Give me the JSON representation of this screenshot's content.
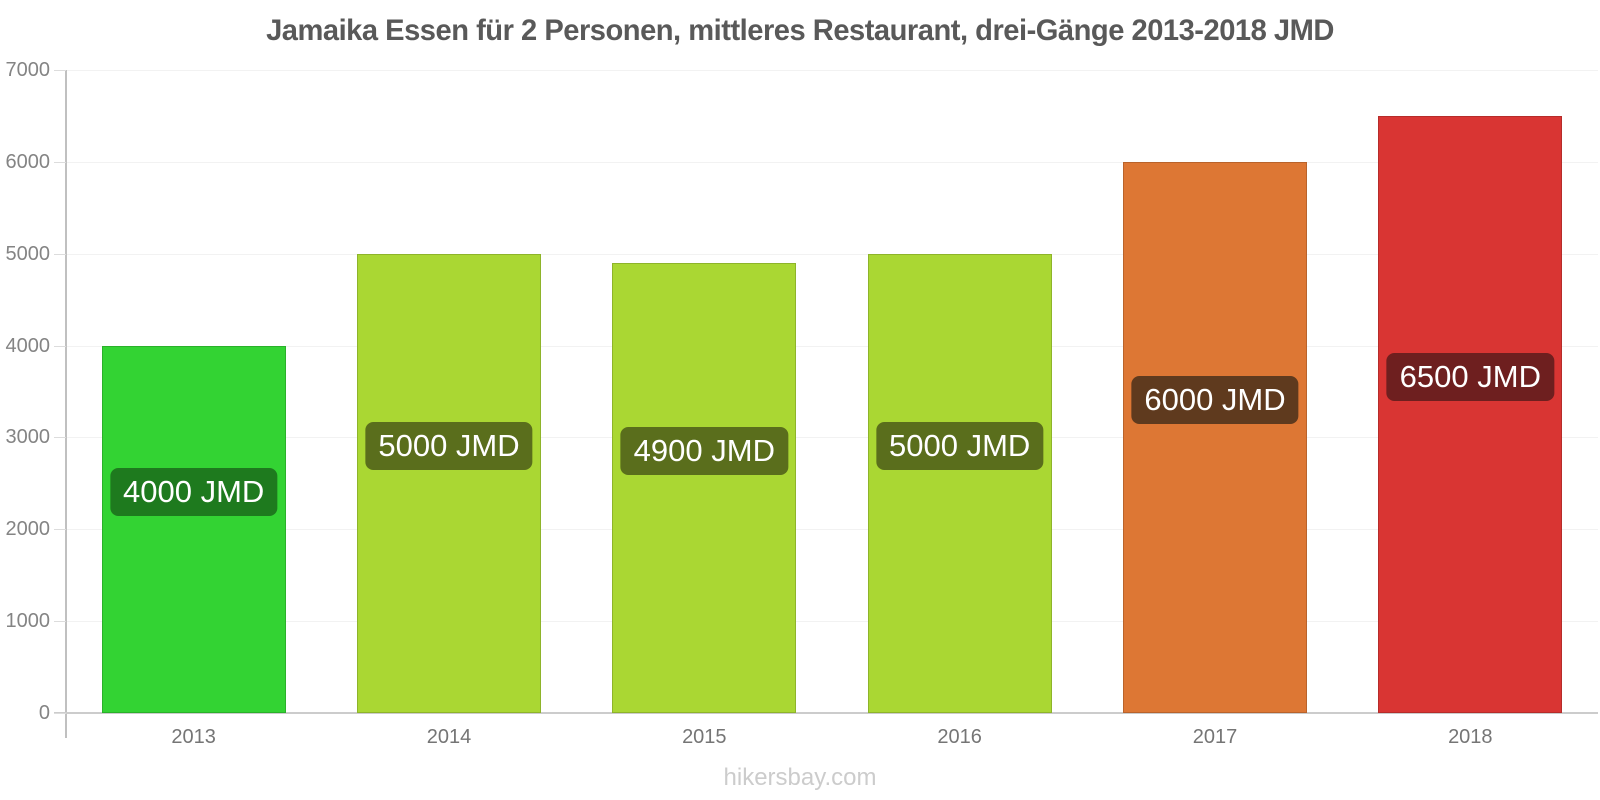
{
  "title": "Jamaika Essen für 2 Personen, mittleres Restaurant, drei-Gänge 2013-2018 JMD",
  "footer": "hikersbay.com",
  "chart_data": {
    "type": "bar",
    "title": "Jamaika Essen für 2 Personen, mittleres Restaurant, drei-Gänge 2013-2018 JMD",
    "unit": "JMD",
    "categories": [
      "2013",
      "2014",
      "2015",
      "2016",
      "2017",
      "2018"
    ],
    "values": [
      4000,
      5000,
      4900,
      5000,
      6000,
      6500
    ],
    "bar_labels": [
      "4000 JMD",
      "5000 JMD",
      "4900 JMD",
      "5000 JMD",
      "6000 JMD",
      "6500 JMD"
    ],
    "bar_colors": [
      "#33d333",
      "#aad733",
      "#aad733",
      "#aad733",
      "#dd7734",
      "#d93533"
    ],
    "bar_label_bg": [
      "#1e7a1e",
      "#5a6e1c",
      "#5a6e1c",
      "#5a6e1c",
      "#5f3a1e",
      "#6e1f1f"
    ],
    "xlabel": "",
    "ylabel": "",
    "ylim": [
      0,
      7000
    ],
    "ytick_step": 1000,
    "y_ticks": [
      0,
      1000,
      2000,
      3000,
      4000,
      5000,
      6000,
      7000
    ],
    "grid": "horizontal-light",
    "legend": "none"
  },
  "colors": {
    "title_text": "#595959",
    "axis_line": "#c0c0c0",
    "baseline": "#cccccc",
    "gridline": "#f2f2f2",
    "y_tick_text": "#848484",
    "x_tick_text": "#757575",
    "footer_text": "#cccccc",
    "bar_label_text": "#ffffff"
  }
}
